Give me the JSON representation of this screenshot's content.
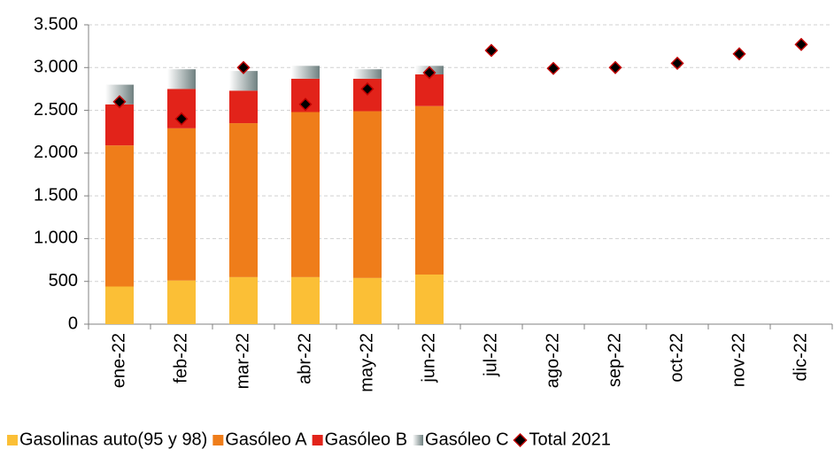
{
  "chart_data": {
    "type": "bar",
    "stacked": true,
    "categories": [
      "ene-22",
      "feb-22",
      "mar-22",
      "abr-22",
      "may-22",
      "jun-22",
      "jul-22",
      "ago-22",
      "sep-22",
      "oct-22",
      "nov-22",
      "dic-22"
    ],
    "series": [
      {
        "name": "Gasolinas auto(95 y 98)",
        "color": "#fbbf36",
        "values": [
          440,
          510,
          550,
          550,
          540,
          580,
          null,
          null,
          null,
          null,
          null,
          null
        ]
      },
      {
        "name": "Gasóleo A",
        "color": "#ef7d1a",
        "values": [
          1650,
          1780,
          1800,
          1930,
          1950,
          1970,
          null,
          null,
          null,
          null,
          null,
          null
        ]
      },
      {
        "name": "Gasóleo B",
        "color": "#e2231a",
        "values": [
          480,
          460,
          380,
          390,
          380,
          370,
          null,
          null,
          null,
          null,
          null,
          null
        ]
      },
      {
        "name": "Gasóleo C",
        "color": "#b8c4c4",
        "values": [
          230,
          230,
          230,
          150,
          110,
          100,
          null,
          null,
          null,
          null,
          null,
          null
        ]
      },
      {
        "name": "Total 2021",
        "type": "scatter",
        "color": "#000000",
        "values": [
          2600,
          2400,
          3000,
          2570,
          2750,
          2940,
          3200,
          2990,
          3000,
          3050,
          3160,
          3270
        ]
      }
    ],
    "ylim": [
      0,
      3500
    ],
    "yticks": [
      0,
      500,
      {
        "value": 1000,
        "label": "1.000"
      },
      {
        "value": 1500,
        "label": "1.500"
      },
      {
        "value": 2000,
        "label": "2.000"
      },
      {
        "value": 2500,
        "label": "2.500"
      },
      {
        "value": 3000,
        "label": "3.000"
      },
      {
        "value": 3500,
        "label": "3.500"
      }
    ],
    "grid": true,
    "legend": "bottom"
  }
}
